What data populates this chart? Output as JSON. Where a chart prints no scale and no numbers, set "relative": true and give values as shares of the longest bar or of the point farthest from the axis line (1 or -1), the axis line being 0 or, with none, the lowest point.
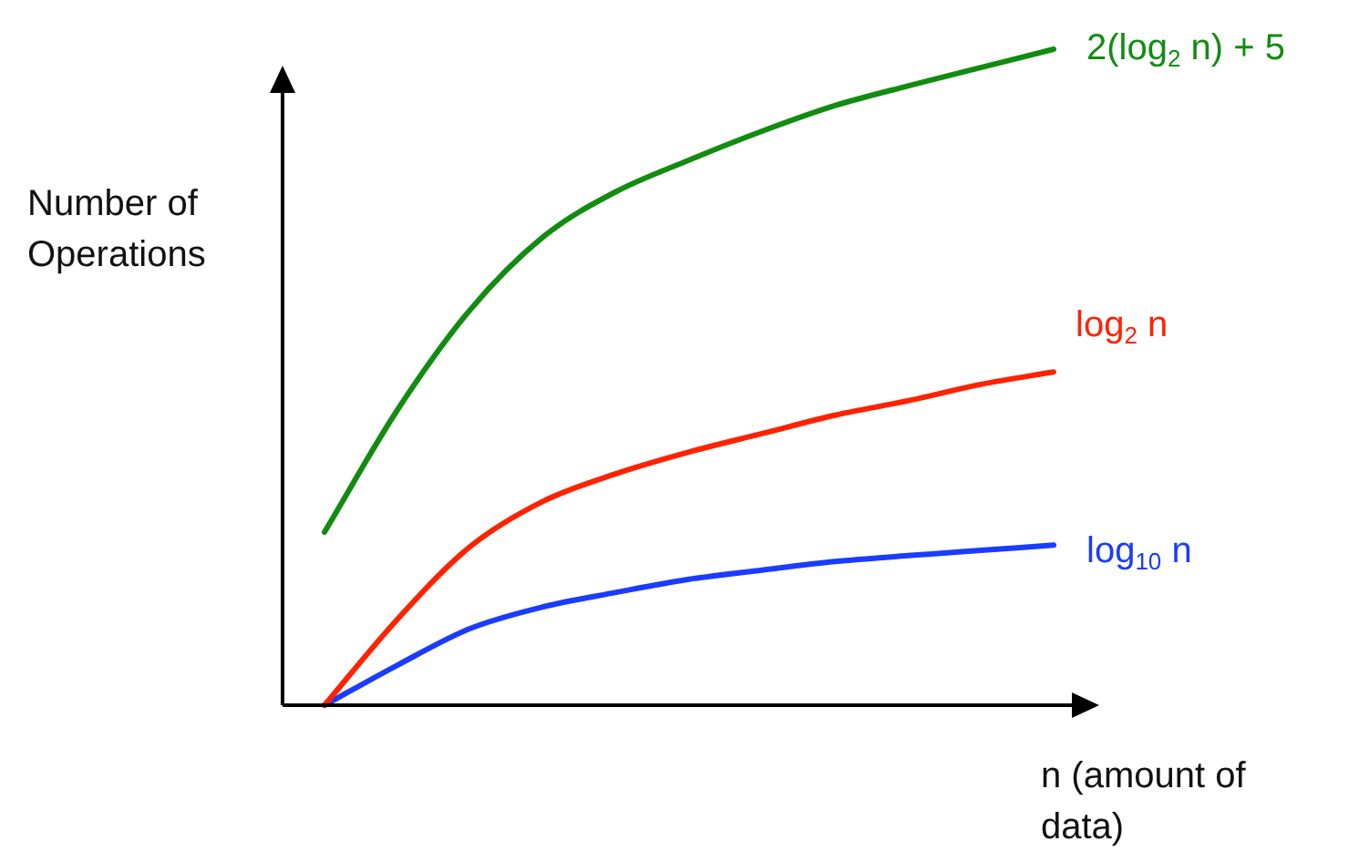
{
  "chart_data": {
    "type": "line",
    "relative": true,
    "ylabel": "Number of Operations",
    "xlabel": "n (amount of data)",
    "categories": [
      null,
      null,
      null,
      null,
      null,
      null,
      null,
      null,
      null,
      null,
      null
    ],
    "legend": false,
    "marker": "none",
    "line_style": "solid",
    "series": [
      {
        "name": "2(log$_{2}$ n) + 5",
        "color": "#118c11",
        "values": [
          0.264,
          0.45,
          0.603,
          0.714,
          0.783,
          0.831,
          0.875,
          0.914,
          0.944,
          0.972,
          1.0
        ]
      },
      {
        "name": "log$_{2}$ n",
        "color": "#ff2200",
        "values": [
          0,
          0.131,
          0.242,
          0.311,
          0.353,
          0.386,
          0.414,
          0.442,
          0.464,
          0.489,
          0.508
        ]
      },
      {
        "name": "log$_{10}$ n",
        "color": "#1a3cff",
        "values": [
          0,
          0.061,
          0.117,
          0.15,
          0.172,
          0.192,
          0.206,
          0.219,
          0.228,
          0.236,
          0.244
        ]
      }
    ]
  }
}
